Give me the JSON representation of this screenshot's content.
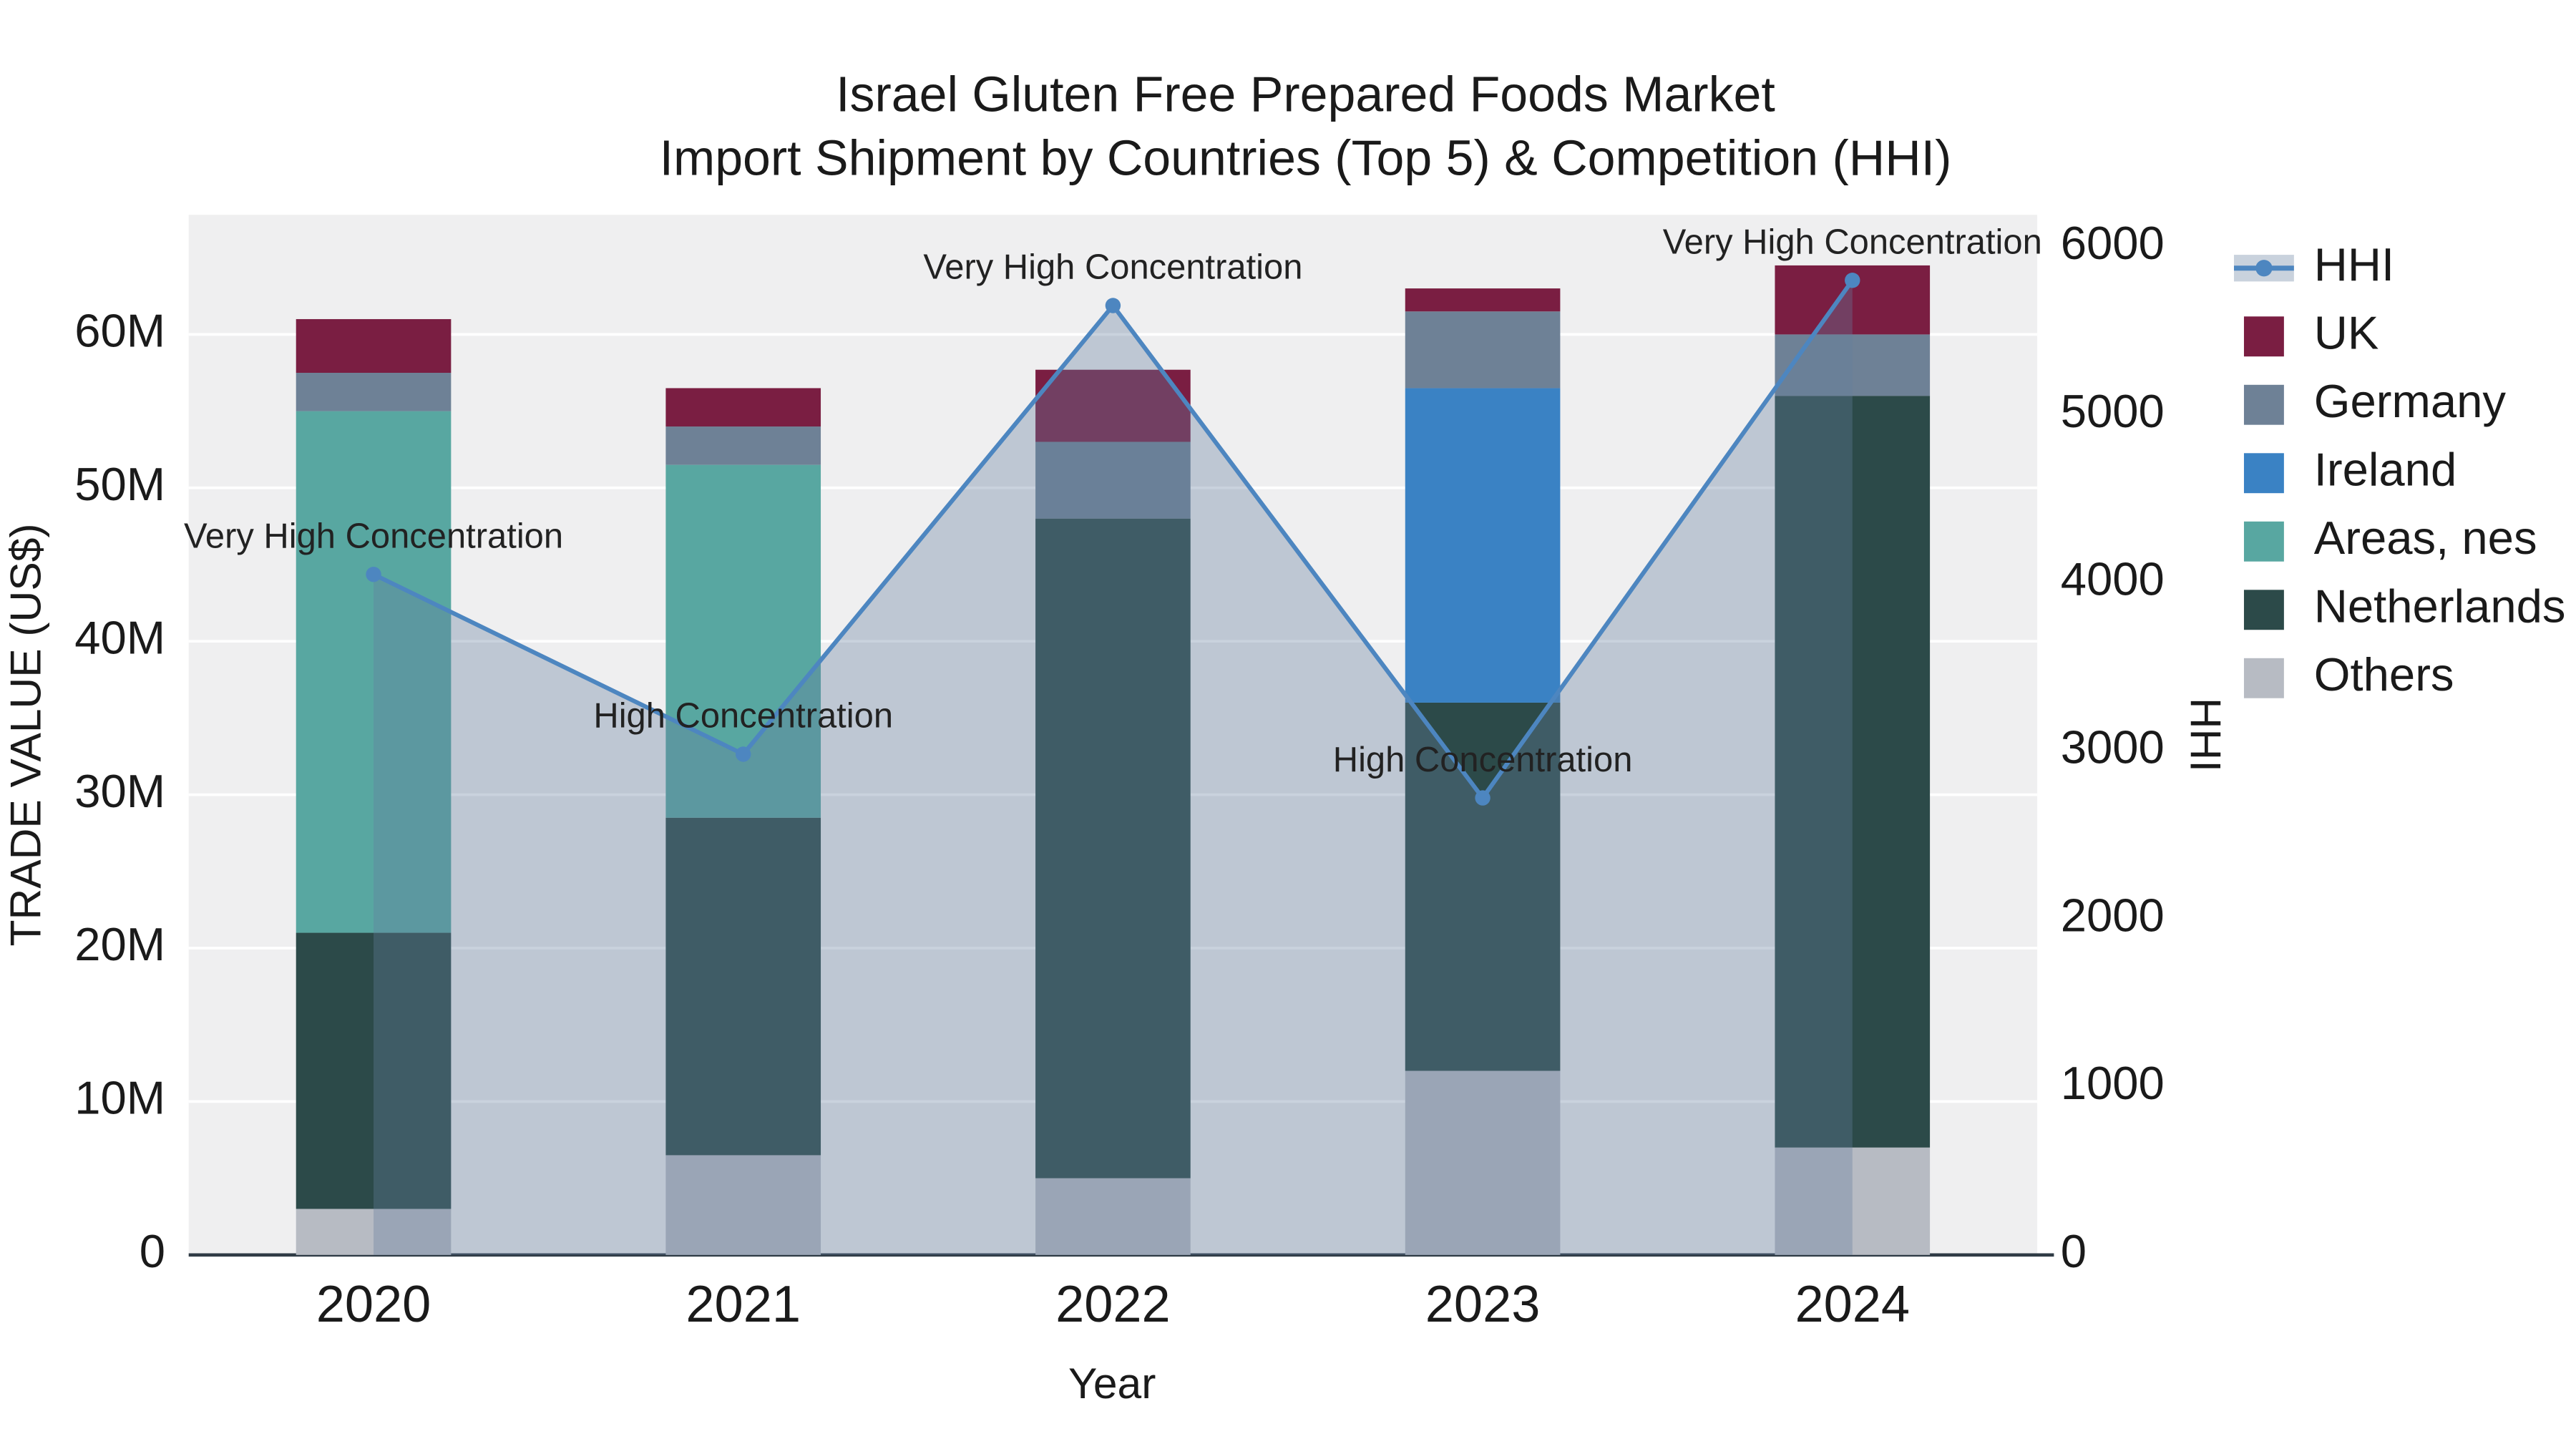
{
  "chart_data": {
    "type": "combo-stacked-bar-line",
    "title": "Israel Gluten Free Prepared Foods Market",
    "subtitle": "Import Shipment by Countries (Top 5) & Competition (HHI)",
    "xlabel": "Year",
    "ylabel_left": "TRADE VALUE (US$)",
    "ylabel_right": "HHI",
    "categories": [
      "2020",
      "2021",
      "2022",
      "2023",
      "2024"
    ],
    "left_axis": {
      "unit": "M US$",
      "tick_values": [
        0,
        10,
        20,
        30,
        40,
        50,
        60
      ],
      "tick_labels": [
        "0",
        "10M",
        "20M",
        "30M",
        "40M",
        "50M",
        "60M"
      ],
      "max": 67.8,
      "grid": true
    },
    "right_axis": {
      "tick_values": [
        0,
        1000,
        2000,
        3000,
        4000,
        5000,
        6000
      ],
      "tick_labels": [
        "0",
        "1000",
        "2000",
        "3000",
        "4000",
        "5000",
        "6000"
      ],
      "max": 6190
    },
    "bar_series": [
      {
        "name": "Others",
        "color": "#b7bbc3",
        "values": [
          3,
          6.5,
          5,
          12,
          7
        ]
      },
      {
        "name": "Netherlands",
        "color": "#2c4a49",
        "values": [
          18,
          22,
          43,
          24,
          49
        ]
      },
      {
        "name": "Ireland",
        "color": "#3a82c4",
        "values": [
          0,
          0,
          0,
          20.5,
          0
        ]
      },
      {
        "name": "Areas, nes",
        "color": "#58a7a1",
        "values": [
          34,
          23,
          0,
          0,
          0
        ]
      },
      {
        "name": "Germany",
        "color": "#6e8196",
        "values": [
          2.5,
          2.5,
          5,
          5,
          4
        ]
      },
      {
        "name": "UK",
        "color": "#7a1e42",
        "values": [
          3.5,
          2.5,
          4.7,
          1.5,
          4.5
        ]
      }
    ],
    "line_series": {
      "name": "HHI",
      "color": "#4d86c0",
      "fill_color": "rgba(100,126,158,0.35)",
      "values": [
        4050,
        2980,
        5650,
        2720,
        5800
      ]
    },
    "annotations": [
      {
        "x": "2020",
        "text": "Very High Concentration"
      },
      {
        "x": "2021",
        "text": "High Concentration"
      },
      {
        "x": "2022",
        "text": "Very High Concentration"
      },
      {
        "x": "2023",
        "text": "High Concentration"
      },
      {
        "x": "2024",
        "text": "Very High Concentration"
      }
    ],
    "legend": [
      {
        "label": "HHI",
        "type": "line",
        "color": "#4d86c0"
      },
      {
        "label": "UK",
        "type": "square",
        "color": "#7a1e42"
      },
      {
        "label": "Germany",
        "type": "square",
        "color": "#6e8196"
      },
      {
        "label": "Ireland",
        "type": "square",
        "color": "#3a82c4"
      },
      {
        "label": "Areas, nes",
        "type": "square",
        "color": "#58a7a1"
      },
      {
        "label": "Netherlands",
        "type": "square",
        "color": "#2c4a49"
      },
      {
        "label": "Others",
        "type": "square",
        "color": "#b7bbc3"
      }
    ],
    "plot_bg_color": "#efeff0",
    "grid_color": "#ffffff"
  }
}
